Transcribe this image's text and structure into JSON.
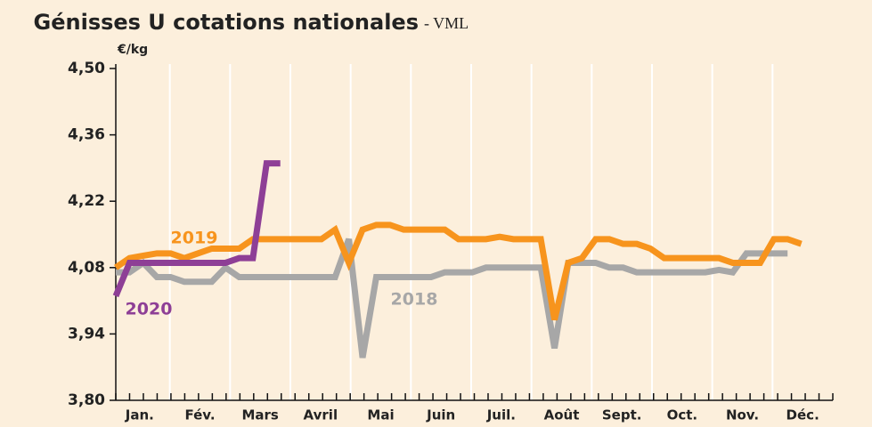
{
  "chart_data": {
    "type": "line",
    "title": "Génisses U cotations nationales",
    "subtitle": "- VML",
    "y_label": "€/kg",
    "categories": [
      "Jan.",
      "Fév.",
      "Mars",
      "Avril",
      "Mai",
      "Juin",
      "Juil.",
      "Août",
      "Sept.",
      "Oct.",
      "Nov.",
      "Déc."
    ],
    "x": [
      1,
      2,
      3,
      4,
      5,
      6,
      7,
      8,
      9,
      10,
      11,
      12,
      13,
      14,
      15,
      16,
      17,
      18,
      19,
      20,
      21,
      22,
      23,
      24,
      25,
      26,
      27,
      28,
      29,
      30,
      31,
      32,
      33,
      34,
      35,
      36,
      37,
      38,
      39,
      40,
      41,
      42,
      43,
      44,
      45,
      46,
      47,
      48,
      49,
      50,
      51
    ],
    "xlim": [
      1,
      52
    ],
    "ylim": [
      3.8,
      4.5
    ],
    "yticks": [
      {
        "value": 3.8,
        "label": "3,80"
      },
      {
        "value": 3.94,
        "label": "3,94"
      },
      {
        "value": 4.08,
        "label": "4,08"
      },
      {
        "value": 4.22,
        "label": "4,22"
      },
      {
        "value": 4.36,
        "label": "4,36"
      },
      {
        "value": 4.5,
        "label": "4,50"
      }
    ],
    "series": [
      {
        "name": "2018",
        "color": "#a7a7a7",
        "values": [
          4.07,
          4.07,
          4.09,
          4.06,
          4.06,
          4.05,
          4.05,
          4.05,
          4.08,
          4.06,
          4.06,
          4.06,
          4.06,
          4.06,
          4.06,
          4.06,
          4.06,
          4.14,
          3.89,
          4.06,
          4.06,
          4.06,
          4.06,
          4.06,
          4.07,
          4.07,
          4.07,
          4.08,
          4.08,
          4.08,
          4.08,
          4.08,
          3.91,
          4.09,
          4.09,
          4.09,
          4.08,
          4.08,
          4.07,
          4.07,
          4.07,
          4.07,
          4.07,
          4.07,
          4.075,
          4.07,
          4.11,
          4.11,
          4.11,
          4.11,
          null
        ]
      },
      {
        "name": "2019",
        "color": "#f7941d",
        "values": [
          4.08,
          4.1,
          4.105,
          4.11,
          4.11,
          4.1,
          4.11,
          4.12,
          4.12,
          4.12,
          4.14,
          4.14,
          4.14,
          4.14,
          4.14,
          4.14,
          4.16,
          4.09,
          4.16,
          4.17,
          4.17,
          4.16,
          4.16,
          4.16,
          4.16,
          4.14,
          4.14,
          4.14,
          4.145,
          4.14,
          4.14,
          4.14,
          3.97,
          4.09,
          4.1,
          4.14,
          4.14,
          4.13,
          4.13,
          4.12,
          4.1,
          4.1,
          4.1,
          4.1,
          4.1,
          4.09,
          4.09,
          4.09,
          4.14,
          4.14,
          4.13
        ]
      },
      {
        "name": "2020",
        "color": "#8e3f96",
        "values": [
          4.02,
          4.09,
          4.09,
          4.09,
          4.09,
          4.09,
          4.09,
          4.09,
          4.09,
          4.1,
          4.1,
          4.3,
          4.3,
          null,
          null,
          null,
          null,
          null,
          null,
          null,
          null,
          null,
          null,
          null,
          null,
          null,
          null,
          null,
          null,
          null,
          null,
          null,
          null,
          null,
          null,
          null,
          null,
          null,
          null,
          null,
          null,
          null,
          null,
          null,
          null,
          null,
          null,
          null,
          null,
          null,
          null
        ]
      }
    ]
  }
}
